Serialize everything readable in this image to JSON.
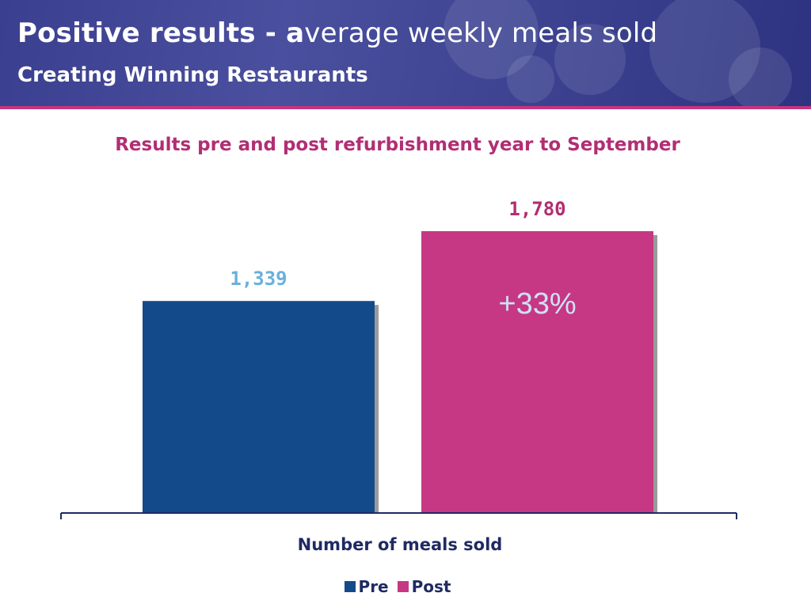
{
  "header": {
    "title_lead": "Positive results - a",
    "title_rest": "verage weekly meals sold",
    "subtitle": "Creating Winning Restaurants",
    "accent_color": "#c4367f"
  },
  "chart_data": {
    "type": "bar",
    "title": "Results pre and post refurbishment year to September",
    "categories": [
      "Number of meals sold"
    ],
    "xlabel": "Number of meals sold",
    "ylabel": "",
    "ylim": [
      0,
      2000
    ],
    "grid": false,
    "legend_position": "bottom",
    "series": [
      {
        "name": "Pre",
        "values": [
          1339
        ],
        "label": "1,339",
        "color": "#134b8a",
        "label_color": "#6ab0dc"
      },
      {
        "name": "Post",
        "values": [
          1780
        ],
        "label": "1,780",
        "color": "#c63884",
        "label_color": "#b22e73"
      }
    ],
    "annotation": "+33%"
  }
}
